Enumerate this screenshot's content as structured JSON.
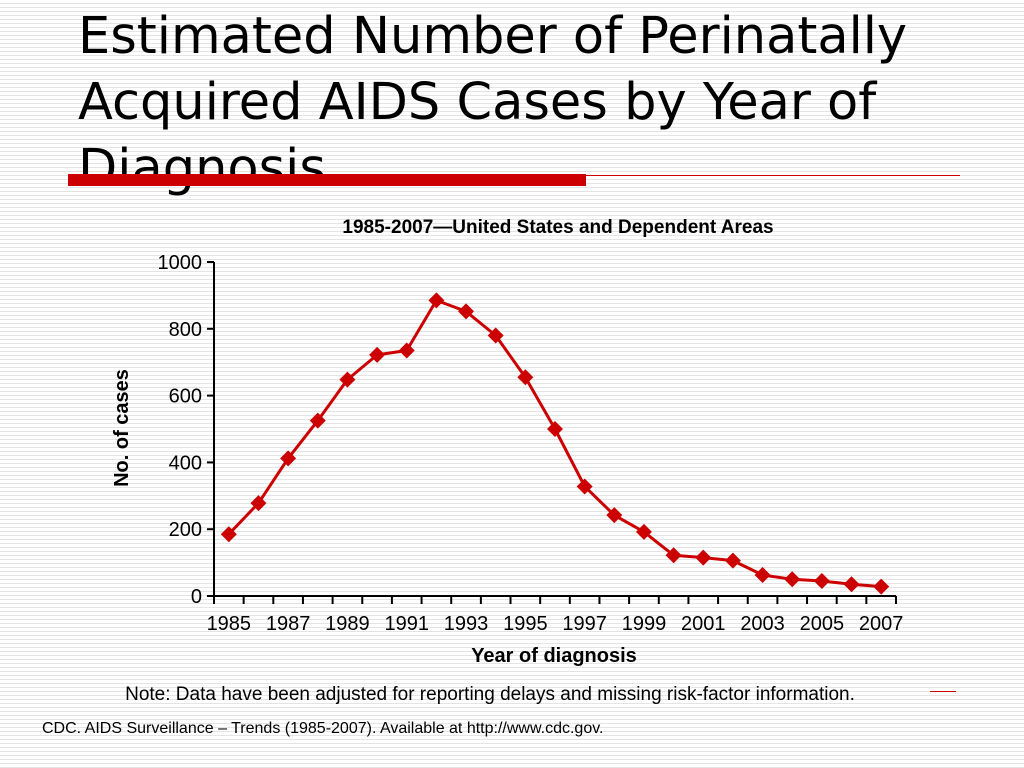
{
  "slide": {
    "title": "Estimated Number of Perinatally Acquired AIDS Cases by Year of Diagnosis",
    "accent_color": "#cc0000",
    "note": "Note: Data have been adjusted for reporting delays and missing risk-factor information.",
    "source": "CDC. AIDS Surveillance – Trends (1985-2007). Available at http://www.cdc.gov."
  },
  "chart_data": {
    "type": "line",
    "title": "1985-2007—United States and Dependent Areas",
    "xlabel": "Year of diagnosis",
    "ylabel": "No. of cases",
    "ylim": [
      0,
      1000
    ],
    "yticks": [
      0,
      200,
      400,
      600,
      800,
      1000
    ],
    "xtick_labels": [
      "1985",
      "1987",
      "1989",
      "1991",
      "1993",
      "1995",
      "1997",
      "1999",
      "2001",
      "2003",
      "2005",
      "2007"
    ],
    "grid": false,
    "marker": "diamond",
    "series_color": "#cc0000",
    "x": [
      1985,
      1986,
      1987,
      1988,
      1989,
      1990,
      1991,
      1992,
      1993,
      1994,
      1995,
      1996,
      1997,
      1998,
      1999,
      2000,
      2001,
      2002,
      2003,
      2004,
      2005,
      2006,
      2007
    ],
    "values": [
      185,
      278,
      412,
      525,
      648,
      722,
      735,
      885,
      852,
      780,
      655,
      500,
      328,
      242,
      192,
      122,
      115,
      106,
      63,
      50,
      45,
      35,
      28
    ]
  }
}
